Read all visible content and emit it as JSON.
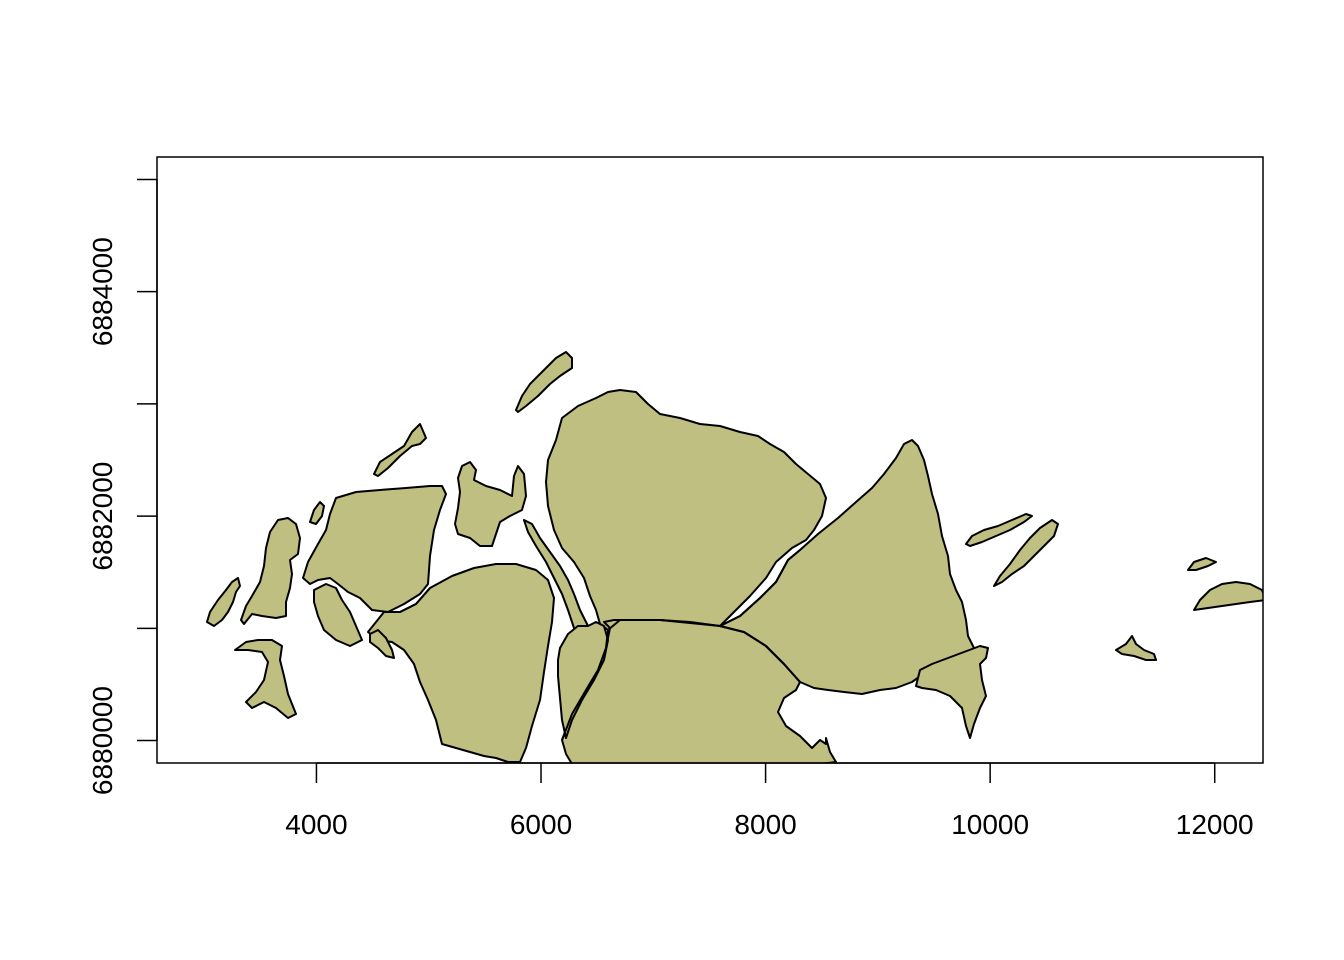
{
  "map": {
    "fill_color": "#BFBF82",
    "stroke_color": "#000000",
    "x_axis": {
      "range": [
        2580,
        12430
      ],
      "ticks": [
        {
          "value": 4000,
          "label": "4000"
        },
        {
          "value": 6000,
          "label": "6000"
        },
        {
          "value": 8000,
          "label": "8000"
        },
        {
          "value": 10000,
          "label": "10000"
        },
        {
          "value": 12000,
          "label": "12000"
        }
      ]
    },
    "y_axis": {
      "range": [
        6879800,
        6885200
      ],
      "ticks": [
        {
          "value": 6880000,
          "label": "6880000"
        },
        {
          "value": 6881000,
          "label": ""
        },
        {
          "value": 6882000,
          "label": "6882000"
        },
        {
          "value": 6883000,
          "label": ""
        },
        {
          "value": 6884000,
          "label": "6884000"
        },
        {
          "value": 6885000,
          "label": ""
        }
      ]
    }
  }
}
